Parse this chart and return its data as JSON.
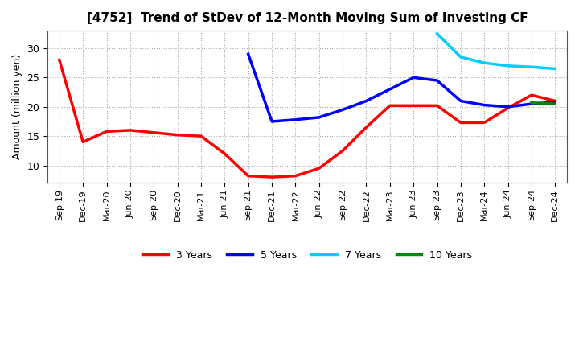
{
  "title": "[4752]  Trend of StDev of 12-Month Moving Sum of Investing CF",
  "ylabel": "Amount (million yen)",
  "background_color": "#ffffff",
  "grid_color": "#aaaaaa",
  "line_width": 2.5,
  "series": {
    "3 Years": {
      "color": "#ff0000",
      "indices": [
        0,
        1,
        2,
        3,
        4,
        5,
        6,
        7,
        8,
        9,
        10,
        11,
        12,
        13,
        14,
        15,
        16,
        17,
        18,
        19,
        20,
        21
      ],
      "values": [
        28.0,
        14.0,
        15.8,
        16.0,
        15.6,
        15.2,
        15.0,
        12.0,
        8.2,
        8.0,
        8.2,
        9.5,
        12.5,
        16.5,
        20.2,
        20.2,
        20.2,
        17.3,
        17.3,
        19.8,
        22.0,
        21.0
      ]
    },
    "5 Years": {
      "color": "#0000ff",
      "indices": [
        8,
        9,
        10,
        11,
        12,
        13,
        14,
        15,
        16,
        17,
        18,
        19,
        20,
        21
      ],
      "values": [
        29.0,
        17.5,
        17.8,
        18.2,
        19.5,
        21.0,
        23.0,
        25.0,
        24.5,
        21.0,
        20.3,
        20.0,
        20.5,
        20.8
      ]
    },
    "7 Years": {
      "color": "#00ccff",
      "indices": [
        16,
        17,
        18,
        19,
        20,
        21
      ],
      "values": [
        32.5,
        28.5,
        27.5,
        27.0,
        26.8,
        26.5
      ]
    },
    "10 Years": {
      "color": "#008800",
      "indices": [
        20,
        21
      ],
      "values": [
        20.7,
        20.5
      ]
    }
  },
  "ylim": [
    7,
    33
  ],
  "yticks": [
    10,
    15,
    20,
    25,
    30
  ],
  "xtick_labels": [
    "Sep-19",
    "Dec-19",
    "Mar-20",
    "Jun-20",
    "Sep-20",
    "Dec-20",
    "Mar-21",
    "Jun-21",
    "Sep-21",
    "Dec-21",
    "Mar-22",
    "Jun-22",
    "Sep-22",
    "Dec-22",
    "Mar-23",
    "Jun-23",
    "Sep-23",
    "Dec-23",
    "Mar-24",
    "Jun-24",
    "Sep-24",
    "Dec-24"
  ]
}
